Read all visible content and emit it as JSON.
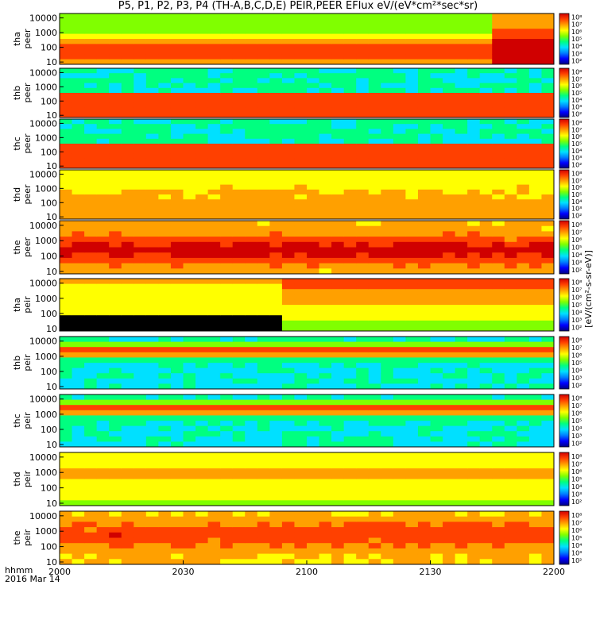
{
  "chart_data": {
    "type": "heatmap",
    "title": "P5, P1, P2, P3, P4 (TH-A,B,C,D,E) PEIR,PEER EFlux eV/(eV*cm²*sec*sr)",
    "x_label_row1": "hhmm",
    "x_label_row2": "2016 Mar 14",
    "x_range": [
      "2000",
      "2200"
    ],
    "x_ticks": [
      "2000",
      "2030",
      "2100",
      "2130",
      "2200"
    ],
    "y_scale": "log",
    "y_unit": "eV",
    "y_range": [
      7,
      20000
    ],
    "y_ticks": [
      "10",
      "100",
      "1000",
      "10000"
    ],
    "colorbar": {
      "scale": "log",
      "ticks": [
        "10²",
        "10³",
        "10⁴",
        "10⁵",
        "10⁶",
        "10⁷",
        "10⁸"
      ],
      "label": "[eV/(cm²-s-sr-eV)]",
      "colors": [
        "#000080",
        "#0000ff",
        "#0080ff",
        "#00e0ff",
        "#00ff80",
        "#80ff00",
        "#ffff00",
        "#ffa000",
        "#ff4000",
        "#d00000"
      ]
    },
    "panels": [
      {
        "label1": "tha",
        "label2": "peer"
      },
      {
        "label1": "thb",
        "label2": "peer"
      },
      {
        "label1": "thc",
        "label2": "peer"
      },
      {
        "label1": "thd",
        "label2": "peer"
      },
      {
        "label1": "the",
        "label2": "peer"
      },
      {
        "label1": "tha",
        "label2": "peir"
      },
      {
        "label1": "thb",
        "label2": "peir"
      },
      {
        "label1": "thc",
        "label2": "peir"
      },
      {
        "label1": "thd",
        "label2": "peir"
      },
      {
        "label1": "the",
        "label2": "peir"
      }
    ]
  }
}
